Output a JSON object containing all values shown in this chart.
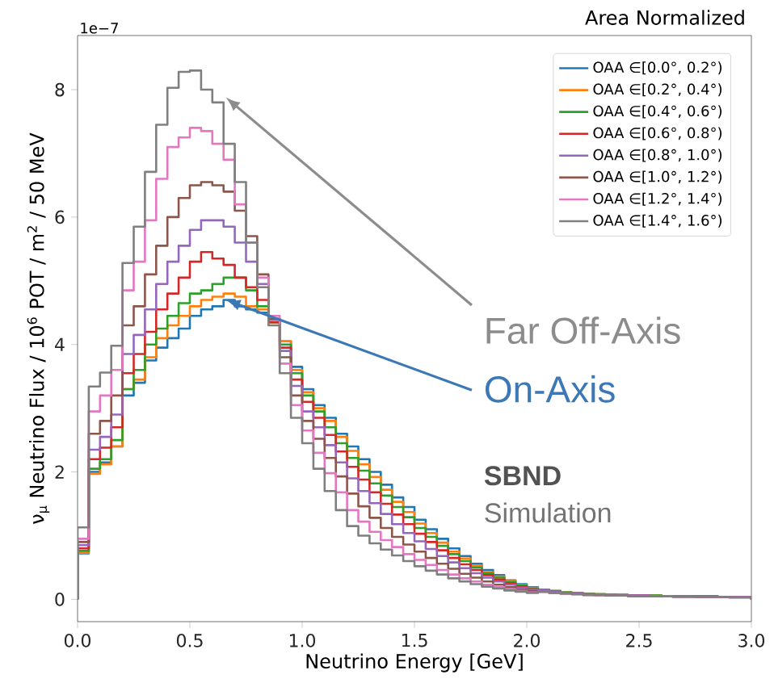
{
  "chart_data": {
    "type": "histogram",
    "title": "Area Normalized",
    "xlabel": "Neutrino Energy [GeV]",
    "ylabel": "ν$_{μ}$ Neutrino Flux / 10$^{6}$ POT / m$^{2}$ / 50 MeV",
    "bins": [
      0,
      0.05,
      0.1,
      0.15,
      0.2,
      0.25,
      0.3,
      0.35,
      0.4,
      0.45,
      0.5,
      0.55,
      0.6,
      0.65,
      0.7,
      0.75,
      0.8,
      0.85,
      0.9,
      0.95,
      1.0,
      1.05,
      1.1,
      1.15,
      1.2,
      1.25,
      1.3,
      1.35,
      1.4,
      1.45,
      1.5,
      1.55,
      1.6,
      1.65,
      1.7,
      1.75,
      1.8,
      1.85,
      1.9,
      1.95,
      2.0,
      2.05,
      2.1,
      2.15,
      2.2,
      2.25,
      2.3,
      2.35,
      2.4,
      2.45,
      2.5,
      2.55,
      2.6,
      2.65,
      2.7,
      2.75,
      2.8,
      2.85,
      2.9,
      2.95,
      3.0
    ],
    "series": [
      {
        "name": "OAA ∈[0.0°, 0.2°)",
        "color": "#1f77b4",
        "values": [
          0.72,
          2.0,
          2.15,
          2.4,
          3.2,
          3.4,
          3.75,
          3.95,
          4.1,
          4.25,
          4.45,
          4.55,
          4.6,
          4.7,
          4.6,
          4.55,
          4.5,
          4.4,
          4.05,
          3.65,
          3.3,
          3.05,
          2.85,
          2.6,
          2.4,
          2.2,
          2.0,
          1.8,
          1.6,
          1.45,
          1.25,
          1.1,
          0.95,
          0.8,
          0.68,
          0.56,
          0.46,
          0.38,
          0.3,
          0.24,
          0.19,
          0.15,
          0.13,
          0.11,
          0.1,
          0.09,
          0.08,
          0.07,
          0.07,
          0.06,
          0.06,
          0.06,
          0.05,
          0.05,
          0.05,
          0.05,
          0.05,
          0.04,
          0.04,
          0.04
        ]
      },
      {
        "name": "OAA ∈[0.2°, 0.4°)",
        "color": "#ff7f0e",
        "values": [
          0.73,
          1.97,
          2.12,
          2.4,
          3.3,
          3.45,
          3.8,
          4.1,
          4.3,
          4.45,
          4.6,
          4.7,
          4.75,
          4.8,
          4.75,
          4.6,
          4.55,
          4.35,
          4.05,
          3.6,
          3.25,
          3.0,
          2.8,
          2.55,
          2.33,
          2.12,
          1.92,
          1.72,
          1.53,
          1.37,
          1.19,
          1.04,
          0.89,
          0.75,
          0.64,
          0.53,
          0.43,
          0.36,
          0.29,
          0.23,
          0.18,
          0.15,
          0.13,
          0.11,
          0.1,
          0.09,
          0.08,
          0.07,
          0.07,
          0.06,
          0.06,
          0.06,
          0.05,
          0.05,
          0.05,
          0.05,
          0.05,
          0.04,
          0.04,
          0.04
        ]
      },
      {
        "name": "OAA ∈[0.4°, 0.6°)",
        "color": "#2ca02c",
        "values": [
          0.76,
          2.05,
          2.2,
          2.5,
          3.3,
          3.6,
          4.0,
          4.25,
          4.45,
          4.65,
          4.8,
          4.85,
          4.95,
          5.05,
          5.05,
          4.85,
          4.6,
          4.35,
          4.0,
          3.55,
          3.2,
          2.95,
          2.7,
          2.45,
          2.22,
          2.02,
          1.82,
          1.63,
          1.45,
          1.29,
          1.12,
          0.98,
          0.84,
          0.71,
          0.6,
          0.5,
          0.41,
          0.34,
          0.27,
          0.22,
          0.17,
          0.15,
          0.13,
          0.11,
          0.1,
          0.09,
          0.08,
          0.07,
          0.07,
          0.06,
          0.06,
          0.06,
          0.05,
          0.05,
          0.05,
          0.05,
          0.05,
          0.04,
          0.04,
          0.04
        ]
      },
      {
        "name": "OAA ∈[0.6°, 0.8°)",
        "color": "#d62728",
        "values": [
          0.8,
          2.2,
          2.38,
          2.7,
          3.55,
          3.85,
          4.2,
          4.55,
          4.8,
          5.05,
          5.3,
          5.45,
          5.35,
          5.25,
          5.05,
          4.9,
          4.7,
          4.35,
          3.95,
          3.45,
          3.1,
          2.85,
          2.58,
          2.32,
          2.08,
          1.88,
          1.68,
          1.5,
          1.33,
          1.18,
          1.03,
          0.9,
          0.77,
          0.65,
          0.55,
          0.46,
          0.38,
          0.31,
          0.25,
          0.2,
          0.16,
          0.14,
          0.12,
          0.1,
          0.09,
          0.08,
          0.07,
          0.07,
          0.06,
          0.06,
          0.06,
          0.05,
          0.05,
          0.05,
          0.05,
          0.04,
          0.04,
          0.04,
          0.04,
          0.04
        ]
      },
      {
        "name": "OAA ∈[0.8°, 1.0°)",
        "color": "#9467bd",
        "values": [
          0.85,
          2.35,
          2.55,
          2.9,
          3.85,
          4.15,
          4.55,
          4.95,
          5.3,
          5.55,
          5.8,
          5.95,
          5.95,
          5.85,
          5.6,
          5.3,
          4.95,
          4.4,
          3.9,
          3.35,
          2.95,
          2.7,
          2.42,
          2.15,
          1.9,
          1.7,
          1.51,
          1.34,
          1.18,
          1.04,
          0.91,
          0.79,
          0.68,
          0.58,
          0.49,
          0.41,
          0.34,
          0.28,
          0.23,
          0.18,
          0.15,
          0.14,
          0.12,
          0.1,
          0.09,
          0.08,
          0.07,
          0.07,
          0.06,
          0.06,
          0.06,
          0.05,
          0.05,
          0.05,
          0.05,
          0.04,
          0.04,
          0.04,
          0.04,
          0.04
        ]
      },
      {
        "name": "OAA ∈[1.0°, 1.2°)",
        "color": "#8c564b",
        "values": [
          0.9,
          2.6,
          2.8,
          3.2,
          4.3,
          4.6,
          5.1,
          5.55,
          6.0,
          6.3,
          6.5,
          6.55,
          6.5,
          6.4,
          6.1,
          5.7,
          5.1,
          4.4,
          3.8,
          3.2,
          2.8,
          2.52,
          2.22,
          1.93,
          1.66,
          1.46,
          1.28,
          1.12,
          0.98,
          0.86,
          0.75,
          0.65,
          0.56,
          0.48,
          0.4,
          0.34,
          0.28,
          0.23,
          0.19,
          0.15,
          0.13,
          0.12,
          0.1,
          0.09,
          0.08,
          0.07,
          0.07,
          0.06,
          0.06,
          0.05,
          0.05,
          0.05,
          0.05,
          0.04,
          0.04,
          0.04,
          0.04,
          0.04,
          0.03,
          0.03
        ]
      },
      {
        "name": "OAA ∈[1.2°, 1.4°)",
        "color": "#e377c2",
        "values": [
          0.95,
          2.95,
          3.2,
          3.6,
          4.85,
          5.3,
          5.95,
          6.6,
          7.1,
          7.25,
          7.4,
          7.35,
          7.15,
          6.9,
          6.2,
          5.6,
          5.05,
          4.45,
          3.7,
          3.05,
          2.65,
          2.3,
          1.98,
          1.68,
          1.4,
          1.22,
          1.06,
          0.93,
          0.82,
          0.71,
          0.62,
          0.54,
          0.46,
          0.39,
          0.33,
          0.28,
          0.23,
          0.19,
          0.16,
          0.13,
          0.11,
          0.12,
          0.1,
          0.09,
          0.08,
          0.07,
          0.07,
          0.06,
          0.06,
          0.05,
          0.05,
          0.05,
          0.05,
          0.04,
          0.04,
          0.04,
          0.04,
          0.04,
          0.03,
          0.03
        ]
      },
      {
        "name": "OAA ∈[1.4°, 1.6°)",
        "color": "#7f7f7f",
        "values": [
          1.13,
          3.34,
          3.56,
          3.98,
          5.28,
          5.85,
          6.71,
          7.45,
          8.03,
          8.28,
          8.3,
          8.0,
          7.8,
          7.15,
          6.55,
          5.6,
          4.9,
          4.3,
          3.55,
          2.85,
          2.45,
          2.05,
          1.7,
          1.4,
          1.15,
          1.0,
          0.88,
          0.78,
          0.69,
          0.6,
          0.52,
          0.45,
          0.39,
          0.33,
          0.28,
          0.24,
          0.2,
          0.17,
          0.14,
          0.12,
          0.1,
          0.12,
          0.1,
          0.09,
          0.08,
          0.07,
          0.07,
          0.06,
          0.06,
          0.05,
          0.05,
          0.05,
          0.05,
          0.04,
          0.04,
          0.04,
          0.04,
          0.04,
          0.03,
          0.03
        ]
      }
    ],
    "xlim": [
      0,
      3.0
    ],
    "ylim": [
      -0.35,
      8.85
    ],
    "xticks": [
      {
        "value": 0,
        "label": "0.0"
      },
      0.5,
      {
        "value": 1,
        "label": "1.0"
      },
      1.5,
      {
        "value": 2,
        "label": "2.0"
      },
      2.5,
      {
        "value": 3,
        "label": "3.0"
      }
    ],
    "yticks": [
      0,
      2,
      4,
      6,
      8
    ],
    "legend": "top right",
    "annotations": [
      "1e−7",
      {
        "text": "Far Off-Axis",
        "x": 0.66,
        "y": 7.88
      },
      {
        "text": "On-Axis",
        "x": 0.66,
        "y": 4.7
      },
      "SBND",
      "Simulation"
    ]
  }
}
